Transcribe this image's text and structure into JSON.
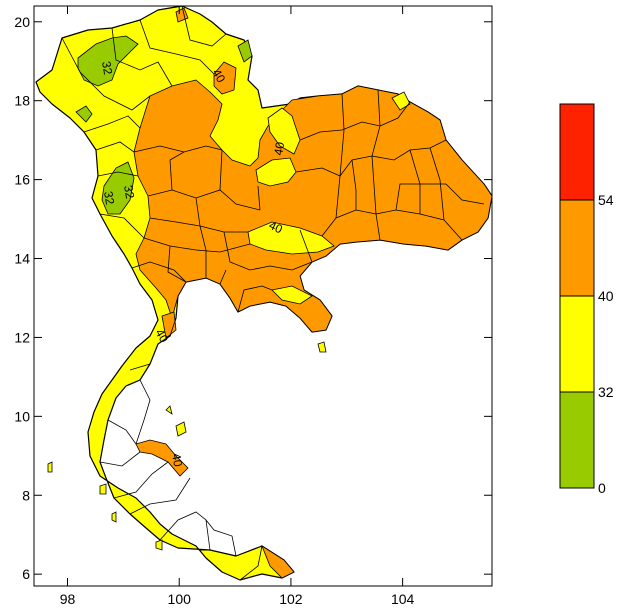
{
  "map": {
    "x_axis": {
      "range": [
        97.4,
        105.6
      ],
      "ticks": [
        "98",
        "100",
        "102",
        "104"
      ],
      "tick_values": [
        98,
        100,
        102,
        104
      ]
    },
    "y_axis": {
      "range": [
        5.7,
        20.4
      ],
      "ticks": [
        "6",
        "8",
        "10",
        "12",
        "14",
        "16",
        "18",
        "20"
      ],
      "tick_values": [
        6,
        8,
        10,
        12,
        14,
        16,
        18,
        20
      ]
    },
    "contour_labels": [
      "32",
      "40",
      "40",
      "40",
      "40",
      "32",
      "32",
      "40"
    ],
    "colors": {
      "bin_0_32": "#99cc00",
      "bin_32_40": "#ffff00",
      "bin_40_54": "#ff9900",
      "bin_54_plus": "#ff2200",
      "boundary": "#000000"
    }
  },
  "colorbar": {
    "bins": [
      {
        "from": 0,
        "to": 32,
        "color": "#99cc00"
      },
      {
        "from": 32,
        "to": 40,
        "color": "#ffff00"
      },
      {
        "from": 40,
        "to": 54,
        "color": "#ff9900"
      },
      {
        "from": 54,
        "to": null,
        "color": "#ff2200"
      }
    ],
    "labels": [
      "0",
      "32",
      "40",
      "54"
    ]
  }
}
